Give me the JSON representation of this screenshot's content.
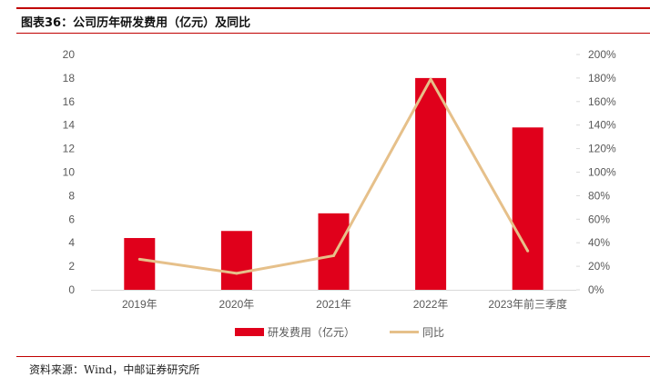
{
  "header": {
    "title": "图表36：公司历年研发费用（亿元）及同比"
  },
  "footer": {
    "source": "资料来源：Wind，中邮证券研究所"
  },
  "chart_data": {
    "type": "bar",
    "title": "公司历年研发费用（亿元）及同比",
    "categories": [
      "2019年",
      "2020年",
      "2021年",
      "2022年",
      "2023年前三季度"
    ],
    "series": [
      {
        "name": "研发费用（亿元）",
        "type": "bar",
        "axis": "left",
        "values": [
          4.4,
          5.0,
          6.5,
          18.0,
          13.8
        ]
      },
      {
        "name": "同比",
        "type": "line",
        "axis": "right",
        "values": [
          26,
          14,
          29,
          179,
          33
        ]
      }
    ],
    "y_left": {
      "min": 0,
      "max": 20,
      "ticks": [
        "0",
        "2",
        "4",
        "6",
        "8",
        "10",
        "12",
        "14",
        "16",
        "18",
        "20"
      ]
    },
    "y_right": {
      "min": 0,
      "max": 200,
      "ticks": [
        "0%",
        "20%",
        "40%",
        "60%",
        "80%",
        "100%",
        "120%",
        "140%",
        "160%",
        "180%",
        "200%"
      ]
    },
    "legend": [
      "研发费用（亿元）",
      "同比"
    ],
    "legend_position": "bottom",
    "colors": {
      "bar": "#e0001b",
      "line": "#e6c08a",
      "axis": "#d9d9d9",
      "accent": "#c00000"
    }
  }
}
